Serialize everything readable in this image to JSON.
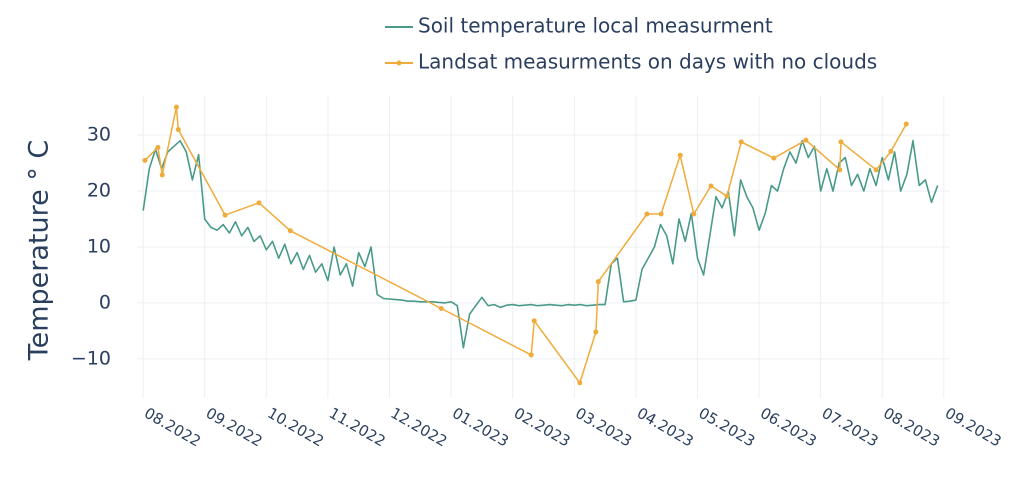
{
  "chart_data": {
    "type": "line",
    "y_label": "Temperature ° C",
    "xlim": [
      7.9,
      21.1
    ],
    "ylim": [
      -17,
      37
    ],
    "xticks": [
      {
        "value": 8,
        "label": "08.2022"
      },
      {
        "value": 9,
        "label": "09.2022"
      },
      {
        "value": 10,
        "label": "10.2022"
      },
      {
        "value": 11,
        "label": "11.2022"
      },
      {
        "value": 12,
        "label": "12.2022"
      },
      {
        "value": 13,
        "label": "01.2023"
      },
      {
        "value": 14,
        "label": "02.2023"
      },
      {
        "value": 15,
        "label": "03.2023"
      },
      {
        "value": 16,
        "label": "04.2023"
      },
      {
        "value": 17,
        "label": "05.2023"
      },
      {
        "value": 18,
        "label": "06.2023"
      },
      {
        "value": 19,
        "label": "07.2023"
      },
      {
        "value": 20,
        "label": "08.2023"
      },
      {
        "value": 21,
        "label": "09.2023"
      }
    ],
    "yticks": [
      {
        "value": -10,
        "label": "−10"
      },
      0,
      10,
      20,
      30
    ],
    "grid": true,
    "series": [
      {
        "name": "Soil temperature local measurment",
        "color": "#4a9a8a",
        "mode": "lines",
        "x": [
          8.0,
          8.1,
          8.2,
          8.3,
          8.4,
          8.5,
          8.6,
          8.7,
          8.8,
          8.9,
          9.0,
          9.1,
          9.2,
          9.3,
          9.4,
          9.5,
          9.6,
          9.7,
          9.8,
          9.9,
          10.0,
          10.1,
          10.2,
          10.3,
          10.4,
          10.5,
          10.6,
          10.7,
          10.8,
          10.9,
          11.0,
          11.1,
          11.2,
          11.3,
          11.4,
          11.5,
          11.6,
          11.7,
          11.8,
          11.9,
          12.0,
          12.1,
          12.2,
          12.3,
          12.4,
          12.5,
          12.6,
          12.7,
          12.8,
          12.9,
          13.0,
          13.1,
          13.2,
          13.3,
          13.4,
          13.5,
          13.6,
          13.7,
          13.8,
          13.9,
          14.0,
          14.1,
          14.2,
          14.3,
          14.4,
          14.5,
          14.6,
          14.7,
          14.8,
          14.9,
          15.0,
          15.1,
          15.2,
          15.3,
          15.4,
          15.5,
          15.6,
          15.7,
          15.8,
          15.9,
          16.0,
          16.1,
          16.2,
          16.3,
          16.4,
          16.5,
          16.6,
          16.7,
          16.8,
          16.9,
          17.0,
          17.1,
          17.2,
          17.3,
          17.4,
          17.5,
          17.6,
          17.7,
          17.8,
          17.9,
          18.0,
          18.1,
          18.2,
          18.3,
          18.4,
          18.5,
          18.6,
          18.7,
          18.8,
          18.9,
          19.0,
          19.1,
          19.2,
          19.3,
          19.4,
          19.5,
          19.6,
          19.7,
          19.8,
          19.9,
          20.0,
          20.1,
          20.2,
          20.3,
          20.4,
          20.5,
          20.6,
          20.7,
          20.8,
          20.9
        ],
        "values": [
          16.5,
          24,
          27.5,
          24,
          27,
          28,
          29,
          27,
          22,
          26.5,
          15,
          13.5,
          13,
          14,
          12.5,
          14.5,
          12,
          13.5,
          11,
          12,
          9.5,
          11,
          8,
          10.5,
          7,
          9,
          6,
          8.5,
          5.5,
          7,
          4,
          10,
          5,
          7,
          3,
          9,
          6.5,
          10,
          1.5,
          0.8,
          0.7,
          0.6,
          0.5,
          0.3,
          0.3,
          0.2,
          0.2,
          0.2,
          0.1,
          0,
          0.2,
          -0.5,
          -8,
          -2,
          -0.5,
          1,
          -0.5,
          -0.3,
          -0.8,
          -0.4,
          -0.3,
          -0.5,
          -0.4,
          -0.3,
          -0.5,
          -0.4,
          -0.3,
          -0.4,
          -0.5,
          -0.3,
          -0.4,
          -0.3,
          -0.5,
          -0.4,
          -0.3,
          -0.3,
          7,
          8,
          0.2,
          0.3,
          0.5,
          6,
          8,
          10,
          14,
          12,
          7,
          15,
          11,
          16,
          8,
          5,
          12,
          19,
          17,
          20,
          12,
          22,
          19,
          17,
          13,
          16,
          21,
          20,
          24,
          27,
          25,
          29,
          26,
          28,
          20,
          24,
          20,
          25,
          26,
          21,
          23,
          20,
          24,
          21,
          26,
          22,
          27,
          20,
          23,
          29,
          21,
          22,
          18,
          21
        ]
      },
      {
        "name": "Landsat measurments on days with no clouds",
        "color": "#f0ab3a",
        "mode": "lines+markers",
        "x": [
          8.03,
          8.24,
          8.31,
          8.54,
          8.57,
          9.33,
          9.88,
          10.39,
          12.84,
          14.3,
          14.35,
          15.09,
          15.35,
          15.39,
          16.18,
          16.41,
          16.72,
          16.94,
          17.22,
          17.48,
          17.71,
          18.24,
          18.76,
          19.31,
          19.33,
          19.9,
          20.14,
          20.39
        ],
        "values": [
          25.5,
          27.8,
          22.9,
          35,
          31,
          15.7,
          17.9,
          12.9,
          -1,
          -9.3,
          -3.2,
          -14.3,
          -5.2,
          3.8,
          15.9,
          15.9,
          26.4,
          15.9,
          20.9,
          19.1,
          28.8,
          25.9,
          29.1,
          23.8,
          28.8,
          23.8,
          27.1,
          32
        ]
      }
    ]
  }
}
